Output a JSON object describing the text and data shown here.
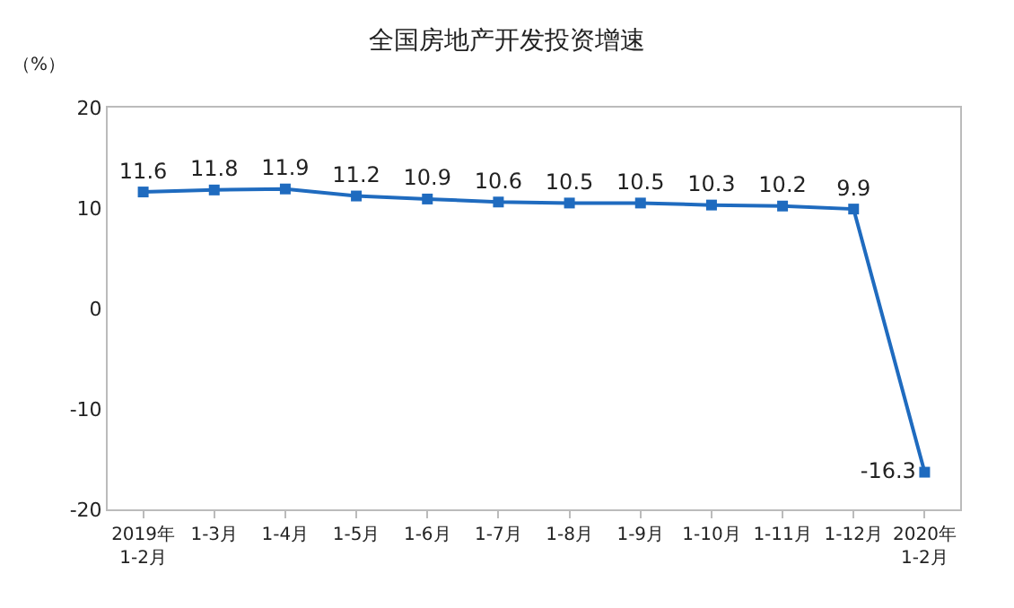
{
  "chart_data": {
    "type": "line",
    "title": "全国房地产开发投资增速",
    "ylabel": "（%）",
    "categories": [
      "2019年\n1-2月",
      "1-3月",
      "1-4月",
      "1-5月",
      "1-6月",
      "1-7月",
      "1-8月",
      "1-9月",
      "1-10月",
      "1-11月",
      "1-12月",
      "2020年\n1-2月"
    ],
    "series": [
      {
        "color": "#1f6bbf",
        "values": [
          11.6,
          11.8,
          11.9,
          11.2,
          10.9,
          10.6,
          10.5,
          10.5,
          10.3,
          10.2,
          9.9,
          -16.3
        ]
      }
    ],
    "ylim": [
      -20,
      20
    ],
    "yticks": [
      -20,
      -10,
      0,
      10,
      20
    ],
    "grid": false,
    "marker": "square",
    "line_style": "solid",
    "data_labels": true
  }
}
